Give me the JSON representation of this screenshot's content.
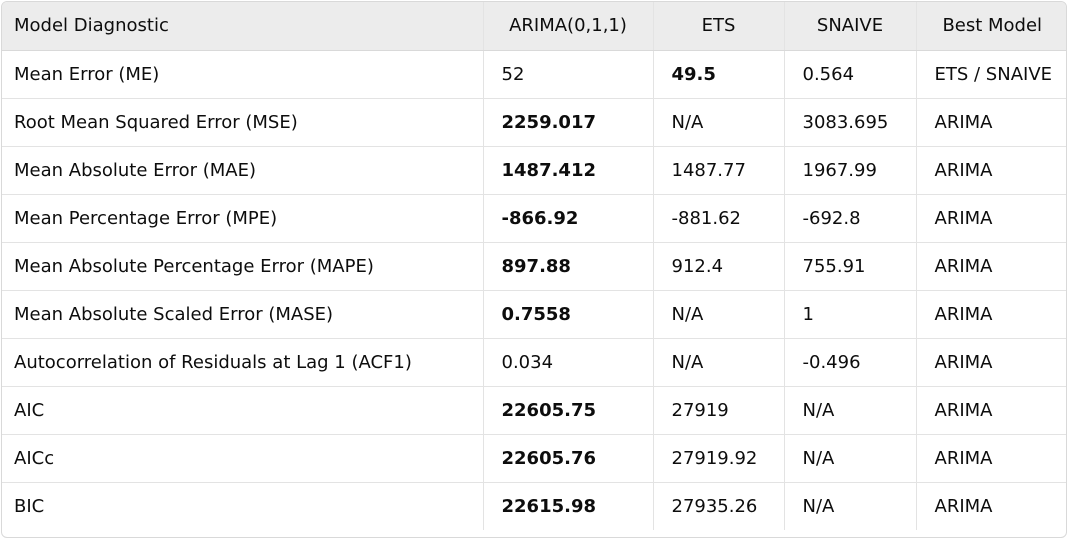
{
  "table": {
    "headers": [
      "Model Diagnostic",
      "ARIMA(0,1,1)",
      "ETS",
      "SNAIVE",
      "Best Model"
    ],
    "rows": [
      {
        "metric": "Mean Error (ME)",
        "arima": "52",
        "ets": "49.5",
        "snaive": "0.564",
        "best": "ETS / SNAIVE"
      },
      {
        "metric": "Root Mean Squared Error (MSE)",
        "arima": "2259.017",
        "ets": "N/A",
        "snaive": "3083.695",
        "best": "ARIMA"
      },
      {
        "metric": "Mean Absolute Error (MAE)",
        "arima": "1487.412",
        "ets": "1487.77",
        "snaive": "1967.99",
        "best": "ARIMA"
      },
      {
        "metric": "Mean Percentage Error (MPE)",
        "arima": "-866.92",
        "ets": "-881.62",
        "snaive": "-692.8",
        "best": "ARIMA"
      },
      {
        "metric": "Mean Absolute Percentage Error (MAPE)",
        "arima": "897.88",
        "ets": "912.4",
        "snaive": "755.91",
        "best": "ARIMA"
      },
      {
        "metric": "Mean Absolute Scaled Error (MASE)",
        "arima": "0.7558",
        "ets": "N/A",
        "snaive": "1",
        "best": "ARIMA"
      },
      {
        "metric": "Autocorrelation of Residuals at Lag 1 (ACF1)",
        "arima": "0.034",
        "ets": "N/A",
        "snaive": "-0.496",
        "best": "ARIMA"
      },
      {
        "metric": "AIC",
        "arima": "22605.75",
        "ets": "27919",
        "snaive": "N/A",
        "best": "ARIMA"
      },
      {
        "metric": "AICc",
        "arima": "22605.76",
        "ets": "27919.92",
        "snaive": "N/A",
        "best": "ARIMA"
      },
      {
        "metric": "BIC",
        "arima": "22615.98",
        "ets": "27935.26",
        "snaive": "N/A",
        "best": "ARIMA"
      }
    ]
  }
}
